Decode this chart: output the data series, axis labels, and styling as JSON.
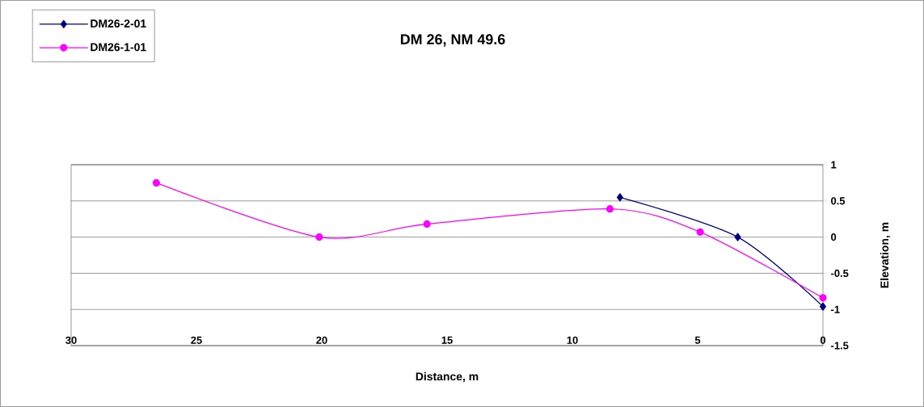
{
  "chart_data": {
    "type": "line",
    "title": "DM 26, NM 49.6",
    "xlabel": "Distance, m",
    "ylabel": "Elevation, m",
    "xlim": [
      30,
      0
    ],
    "xticks": [
      30,
      25,
      20,
      15,
      10,
      5,
      0
    ],
    "ylim": [
      -1.5,
      1
    ],
    "yticks": [
      -1.5,
      -1,
      -0.5,
      0,
      0.5,
      1
    ],
    "grid": "y",
    "legend": "top left",
    "series": [
      {
        "name": "DM26-2-01",
        "color": "#000080",
        "marker": "diamond",
        "x": [
          8.1,
          3.4,
          0
        ],
        "values": [
          0.55,
          0.0,
          -0.96
        ]
      },
      {
        "name": "DM26-1-01",
        "color": "#ff00ff",
        "marker": "circle",
        "x": [
          26.6,
          20.1,
          15.8,
          8.5,
          4.9,
          0
        ],
        "values": [
          0.75,
          0.0,
          0.18,
          0.39,
          0.07,
          -0.84
        ]
      }
    ]
  }
}
